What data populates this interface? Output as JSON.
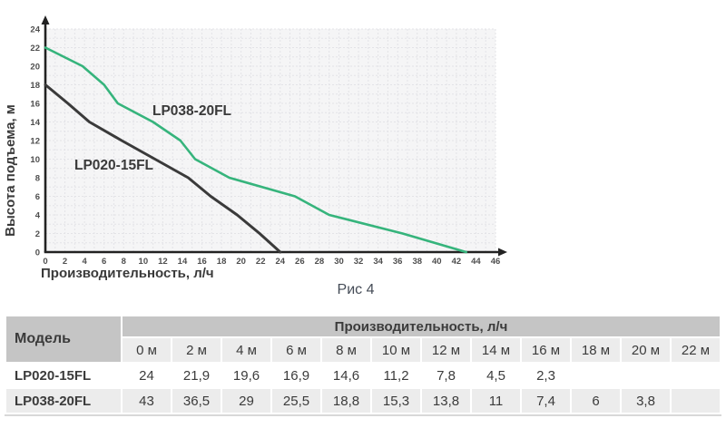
{
  "chart_data": {
    "type": "line",
    "title": "",
    "caption": "Рис 4",
    "xlabel": "Производительность, л/ч",
    "ylabel": "Высота подъема, м",
    "xlim": [
      0,
      46
    ],
    "ylim": [
      0,
      24
    ],
    "x_tick_step": 2,
    "y_tick_step": 2,
    "grid": true,
    "legend_position": "inline-labels",
    "series": [
      {
        "name": "LP020-15FL",
        "color": "#3a3a3a",
        "points": [
          [
            0,
            18
          ],
          [
            2.3,
            16
          ],
          [
            4.5,
            14
          ],
          [
            7.8,
            12
          ],
          [
            11.2,
            10
          ],
          [
            14.6,
            8
          ],
          [
            16.9,
            6
          ],
          [
            19.6,
            4
          ],
          [
            21.9,
            2
          ],
          [
            24,
            0
          ]
        ]
      },
      {
        "name": "LP038-20FL",
        "color": "#36b47c",
        "points": [
          [
            0,
            22
          ],
          [
            3.8,
            20
          ],
          [
            6,
            18
          ],
          [
            7.4,
            16
          ],
          [
            11,
            14
          ],
          [
            13.8,
            12
          ],
          [
            15.3,
            10
          ],
          [
            18.8,
            8
          ],
          [
            25.5,
            6
          ],
          [
            29,
            4
          ],
          [
            36.5,
            2
          ],
          [
            43,
            0
          ]
        ]
      }
    ]
  },
  "table": {
    "model_header": "Модель",
    "group_header": "Производительность, л/ч",
    "columns": [
      "0 м",
      "2 м",
      "4 м",
      "6 м",
      "8 м",
      "10 м",
      "12 м",
      "14 м",
      "16 м",
      "18 м",
      "20 м",
      "22 м"
    ],
    "rows": [
      {
        "model": "LP020-15FL",
        "values": [
          "24",
          "21,9",
          "19,6",
          "16,9",
          "14,6",
          "11,2",
          "7,8",
          "4,5",
          "2,3",
          "",
          "",
          ""
        ]
      },
      {
        "model": "LP038-20FL",
        "values": [
          "43",
          "36,5",
          "29",
          "25,5",
          "18,8",
          "15,3",
          "13,8",
          "11",
          "7,4",
          "6",
          "3,8",
          ""
        ]
      }
    ]
  },
  "colors": {
    "axis": "#222222",
    "grid": "#e3e3e7",
    "plot_bg": "#f5f5f6",
    "tick_text": "#4e4e4e",
    "chart_text": "#3a3a3a",
    "table_header_bg": "#c5c5c5",
    "table_stripe_bg": "#ececec",
    "table_text": "#3b3b3b",
    "caption_text": "#454c57"
  }
}
